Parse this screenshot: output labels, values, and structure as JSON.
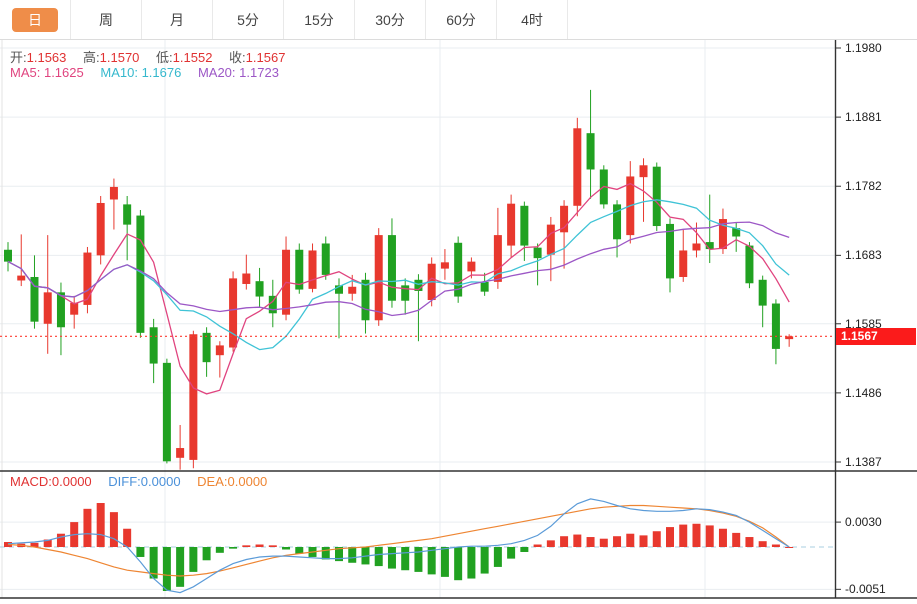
{
  "tabs": {
    "items": [
      {
        "id": "day",
        "label": "日",
        "active": true
      },
      {
        "id": "week",
        "label": "周",
        "active": false
      },
      {
        "id": "month",
        "label": "月",
        "active": false
      },
      {
        "id": "5min",
        "label": "5分",
        "active": false
      },
      {
        "id": "15min",
        "label": "15分",
        "active": false
      },
      {
        "id": "30min",
        "label": "30分",
        "active": false
      },
      {
        "id": "60min",
        "label": "60分",
        "active": false
      },
      {
        "id": "4hour",
        "label": "4时",
        "active": false
      }
    ]
  },
  "legend": {
    "open_label": "开:",
    "open": "1.1563",
    "high_label": "高:",
    "high": "1.1570",
    "low_label": "低:",
    "low": "1.1552",
    "close_label": "收:",
    "close": "1.1567",
    "ma5_label": "MA5:",
    "ma5": "1.1625",
    "ma10_label": "MA10:",
    "ma10": "1.1676",
    "ma20_label": "MA20:",
    "ma20": "1.1723"
  },
  "macd_legend": {
    "macd_label": "MACD:",
    "macd": "0.0000",
    "diff_label": "DIFF:",
    "diff": "0.0000",
    "dea_label": "DEA:",
    "dea": "0.0000"
  },
  "price_axis": {
    "labels": [
      "1.1980",
      "1.1881",
      "1.1782",
      "1.1683",
      "1.1585",
      "1.1486",
      "1.1387"
    ],
    "current_price": "1.1567"
  },
  "macd_axis": {
    "labels": [
      "0.0030",
      "-0.0051"
    ]
  },
  "colors": {
    "up": "#e8382e",
    "down": "#21a121",
    "ma5": "#e0447f",
    "ma10": "#3fc3d6",
    "ma20": "#9c57c6",
    "diff": "#5b9bd8",
    "dea": "#ee8532",
    "grid": "#e9edf0",
    "frame": "#333333",
    "dotted_price": "#ff3b30",
    "zero_dash": "#aacfe0",
    "badge": "#fb1b1b",
    "tab_active": "#ef8d49"
  },
  "chart_data": {
    "type": "candlestick",
    "timeframe": "日",
    "price_panel": {
      "ylim": [
        1.1387,
        1.198
      ],
      "yticks": [
        1.198,
        1.1881,
        1.1782,
        1.1683,
        1.1585,
        1.1486,
        1.1387
      ],
      "current_price": 1.1567,
      "ma_periods": [
        5,
        10,
        20
      ],
      "ohlc": [
        [
          1.1691,
          1.1702,
          1.166,
          1.1674
        ],
        [
          1.1647,
          1.1713,
          1.1639,
          1.1654
        ],
        [
          1.1652,
          1.1683,
          1.1578,
          1.1588
        ],
        [
          1.1585,
          1.1712,
          1.1542,
          1.163
        ],
        [
          1.163,
          1.1644,
          1.154,
          1.158
        ],
        [
          1.1598,
          1.1625,
          1.1578,
          1.1615
        ],
        [
          1.1612,
          1.1695,
          1.16,
          1.1687
        ],
        [
          1.1683,
          1.1768,
          1.167,
          1.1758
        ],
        [
          1.1763,
          1.1793,
          1.172,
          1.1781
        ],
        [
          1.1756,
          1.1768,
          1.1676,
          1.1727
        ],
        [
          1.174,
          1.1748,
          1.1565,
          1.1572
        ],
        [
          1.158,
          1.1592,
          1.15,
          1.1528
        ],
        [
          1.1529,
          1.1535,
          1.1385,
          1.1388
        ],
        [
          1.1393,
          1.144,
          1.1376,
          1.1407
        ],
        [
          1.139,
          1.1575,
          1.1378,
          1.157
        ],
        [
          1.1572,
          1.158,
          1.1509,
          1.153
        ],
        [
          1.154,
          1.156,
          1.1508,
          1.1554
        ],
        [
          1.1551,
          1.166,
          1.1545,
          1.165
        ],
        [
          1.1642,
          1.1684,
          1.1634,
          1.1657
        ],
        [
          1.1646,
          1.1665,
          1.1609,
          1.1624
        ],
        [
          1.1625,
          1.1648,
          1.158,
          1.16
        ],
        [
          1.1598,
          1.171,
          1.159,
          1.1691
        ],
        [
          1.1691,
          1.17,
          1.1628,
          1.1634
        ],
        [
          1.1635,
          1.17,
          1.163,
          1.169
        ],
        [
          1.17,
          1.171,
          1.1648,
          1.1655
        ],
        [
          1.164,
          1.165,
          1.1564,
          1.1628
        ],
        [
          1.1628,
          1.1655,
          1.1618,
          1.1638
        ],
        [
          1.1648,
          1.1658,
          1.1571,
          1.159
        ],
        [
          1.159,
          1.1722,
          1.1582,
          1.1712
        ],
        [
          1.1712,
          1.1736,
          1.1608,
          1.1618
        ],
        [
          1.164,
          1.165,
          1.1598,
          1.1618
        ],
        [
          1.1648,
          1.1656,
          1.156,
          1.1632
        ],
        [
          1.1619,
          1.168,
          1.161,
          1.1671
        ],
        [
          1.1664,
          1.1692,
          1.1648,
          1.1673
        ],
        [
          1.1701,
          1.171,
          1.1615,
          1.1624
        ],
        [
          1.166,
          1.168,
          1.165,
          1.1674
        ],
        [
          1.1645,
          1.1658,
          1.1625,
          1.1631
        ],
        [
          1.1645,
          1.1751,
          1.1635,
          1.1712
        ],
        [
          1.1697,
          1.177,
          1.168,
          1.1757
        ],
        [
          1.1754,
          1.176,
          1.1675,
          1.1697
        ],
        [
          1.1694,
          1.17,
          1.164,
          1.1679
        ],
        [
          1.1684,
          1.1738,
          1.1646,
          1.1727
        ],
        [
          1.1716,
          1.1762,
          1.1664,
          1.1754
        ],
        [
          1.1754,
          1.188,
          1.1739,
          1.1865
        ],
        [
          1.1858,
          1.192,
          1.1764,
          1.1806
        ],
        [
          1.1806,
          1.1812,
          1.175,
          1.1756
        ],
        [
          1.1756,
          1.1762,
          1.168,
          1.1706
        ],
        [
          1.1712,
          1.1818,
          1.17,
          1.1796
        ],
        [
          1.1795,
          1.1822,
          1.1731,
          1.1812
        ],
        [
          1.181,
          1.1816,
          1.1718,
          1.1725
        ],
        [
          1.1728,
          1.1736,
          1.163,
          1.165
        ],
        [
          1.1652,
          1.172,
          1.1645,
          1.169
        ],
        [
          1.169,
          1.173,
          1.168,
          1.17
        ],
        [
          1.1702,
          1.177,
          1.1672,
          1.1692
        ],
        [
          1.1692,
          1.175,
          1.1685,
          1.1735
        ],
        [
          1.1722,
          1.173,
          1.1688,
          1.171
        ],
        [
          1.1697,
          1.1702,
          1.1636,
          1.1643
        ],
        [
          1.1648,
          1.1654,
          1.158,
          1.1611
        ],
        [
          1.1614,
          1.162,
          1.1527,
          1.1549
        ],
        [
          1.1563,
          1.157,
          1.1552,
          1.1567
        ]
      ]
    },
    "macd_panel": {
      "yticks": [
        0.003,
        -0.0051
      ],
      "hist": [
        0.0006,
        0.0004,
        0.0005,
        0.0009,
        0.0016,
        0.003,
        0.0046,
        0.0053,
        0.0042,
        0.0022,
        -0.0012,
        -0.0038,
        -0.0053,
        -0.0048,
        -0.003,
        -0.0016,
        -0.0007,
        -0.0002,
        0.0002,
        0.0003,
        0.0002,
        -0.0003,
        -0.0008,
        -0.0012,
        -0.0015,
        -0.0017,
        -0.0019,
        -0.0021,
        -0.0023,
        -0.0026,
        -0.0028,
        -0.003,
        -0.0033,
        -0.0036,
        -0.004,
        -0.0038,
        -0.0032,
        -0.0024,
        -0.0014,
        -0.0006,
        0.0003,
        0.0008,
        0.0013,
        0.0015,
        0.0012,
        0.001,
        0.0013,
        0.0016,
        0.0014,
        0.0019,
        0.0024,
        0.0027,
        0.0028,
        0.0026,
        0.0022,
        0.0017,
        0.0012,
        0.0007,
        0.0003,
        0.0
      ],
      "diff": [
        0.0004,
        0.0005,
        0.0006,
        0.0008,
        0.0012,
        0.0015,
        0.0016,
        0.0015,
        0.001,
        0.0,
        -0.0018,
        -0.0038,
        -0.0052,
        -0.0055,
        -0.0048,
        -0.0038,
        -0.0028,
        -0.002,
        -0.0015,
        -0.0012,
        -0.0011,
        -0.0011,
        -0.0012,
        -0.0013,
        -0.0014,
        -0.0014,
        -0.0013,
        -0.0011,
        -0.0009,
        -0.0008,
        -0.0007,
        -0.0006,
        -0.0004,
        -0.0002,
        0.0,
        0.0001,
        0.0001,
        0.0002,
        0.0004,
        0.0008,
        0.0014,
        0.0025,
        0.004,
        0.0052,
        0.0058,
        0.0055,
        0.005,
        0.0046,
        0.0044,
        0.0043,
        0.0043,
        0.0044,
        0.0046,
        0.0045,
        0.0042,
        0.0038,
        0.003,
        0.002,
        0.001,
        0.0
      ],
      "dea": [
        0.0003,
        0.0002,
        0.0,
        -0.0003,
        -0.0006,
        -0.001,
        -0.0014,
        -0.0019,
        -0.0024,
        -0.0028,
        -0.003,
        -0.0032,
        -0.0034,
        -0.0035,
        -0.0034,
        -0.0032,
        -0.0029,
        -0.0025,
        -0.0021,
        -0.0017,
        -0.0013,
        -0.001,
        -0.0008,
        -0.0006,
        -0.0004,
        -0.0002,
        -0.0001,
        0.0,
        0.0002,
        0.0004,
        0.0006,
        0.0008,
        0.001,
        0.0013,
        0.0016,
        0.0019,
        0.0022,
        0.0025,
        0.0028,
        0.0031,
        0.0034,
        0.0037,
        0.004,
        0.0043,
        0.0046,
        0.0048,
        0.0049,
        0.005,
        0.005,
        0.0049,
        0.0048,
        0.0047,
        0.0046,
        0.0044,
        0.0041,
        0.0037,
        0.0031,
        0.0023,
        0.0012,
        0.0
      ]
    }
  }
}
